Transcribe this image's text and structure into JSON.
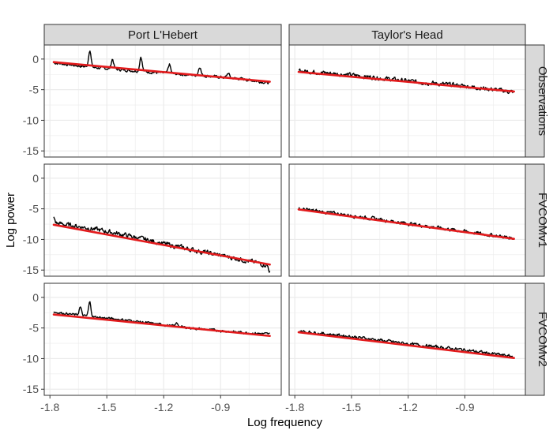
{
  "chart_data": {
    "type": "line",
    "xlabel": "Log frequency",
    "ylabel": "Log power",
    "xlim": [
      -1.83,
      -0.58
    ],
    "ylim": [
      -16,
      2.3
    ],
    "x_ticks": [
      -1.8,
      -1.5,
      -1.2,
      -0.9
    ],
    "x_tick_labels": [
      "-1.8",
      "-1.5",
      "-1.2",
      "-0.9"
    ],
    "y_ticks": [
      0,
      -5,
      -10,
      -15
    ],
    "y_tick_labels": [
      "0",
      "-5",
      "-10",
      "-15"
    ],
    "columns": [
      "Port L'Hebert",
      "Taylor's Head"
    ],
    "rows": [
      "Observations",
      "FVCOMv1",
      "FVCOMv2"
    ],
    "grid": true,
    "colors": {
      "spectrum": "#000000",
      "fit": "#e31a1c",
      "strip_bg": "#d9d9d9",
      "grid": "#ebebeb",
      "panel_border": "#333333"
    },
    "x_range": [
      -1.78,
      -0.64
    ],
    "panels": [
      {
        "column": "Port L'Hebert",
        "row": "Observations",
        "fit": {
          "x": [
            -1.78,
            -0.64
          ],
          "y": [
            -0.5,
            -3.7
          ]
        },
        "baseline": {
          "x": [
            -1.78,
            -1.6,
            -1.4,
            -1.2,
            -1.0,
            -0.8,
            -0.64
          ],
          "y": [
            -0.6,
            -1.3,
            -1.8,
            -2.3,
            -2.7,
            -3.2,
            -3.9
          ]
        },
        "peaks": [
          {
            "x": -1.59,
            "y": 1.5
          },
          {
            "x": -1.47,
            "y": 0.0
          },
          {
            "x": -1.32,
            "y": 0.4
          },
          {
            "x": -1.17,
            "y": -0.9
          },
          {
            "x": -1.01,
            "y": -1.2
          },
          {
            "x": -0.86,
            "y": -2.3
          }
        ],
        "noise": 0.35
      },
      {
        "column": "Taylor's Head",
        "row": "Observations",
        "fit": {
          "x": [
            -1.78,
            -0.64
          ],
          "y": [
            -2.1,
            -5.3
          ]
        },
        "baseline": {
          "x": [
            -1.78,
            -1.5,
            -1.2,
            -0.9,
            -0.64
          ],
          "y": [
            -1.9,
            -2.6,
            -3.6,
            -4.4,
            -5.4
          ]
        },
        "peaks": [],
        "noise": 0.55
      },
      {
        "column": "Port L'Hebert",
        "row": "FVCOMv1",
        "fit": {
          "x": [
            -1.78,
            -0.64
          ],
          "y": [
            -7.6,
            -14.1
          ]
        },
        "baseline": {
          "x": [
            -1.78,
            -1.6,
            -1.4,
            -1.2,
            -1.0,
            -0.8,
            -0.64
          ],
          "y": [
            -7.3,
            -8.1,
            -9.3,
            -10.7,
            -12.0,
            -13.2,
            -14.3
          ]
        },
        "peaks": [
          {
            "x": -1.78,
            "y": -6.5
          },
          {
            "x": -0.64,
            "y": -15.2
          }
        ],
        "noise": 0.6
      },
      {
        "column": "Taylor's Head",
        "row": "FVCOMv1",
        "fit": {
          "x": [
            -1.78,
            -0.64
          ],
          "y": [
            -5.1,
            -9.9
          ]
        },
        "baseline": {
          "x": [
            -1.78,
            -1.5,
            -1.2,
            -0.9,
            -0.64
          ],
          "y": [
            -5.0,
            -6.1,
            -7.4,
            -8.7,
            -9.8
          ]
        },
        "peaks": [],
        "noise": 0.45
      },
      {
        "column": "Port L'Hebert",
        "row": "FVCOMv2",
        "fit": {
          "x": [
            -1.78,
            -0.64
          ],
          "y": [
            -2.8,
            -6.3
          ]
        },
        "baseline": {
          "x": [
            -1.78,
            -1.6,
            -1.4,
            -1.2,
            -1.0,
            -0.8,
            -0.64
          ],
          "y": [
            -2.4,
            -3.1,
            -3.7,
            -4.5,
            -5.2,
            -5.7,
            -6.0
          ]
        },
        "peaks": [
          {
            "x": -1.59,
            "y": -0.8
          },
          {
            "x": -1.64,
            "y": -1.6
          },
          {
            "x": -1.13,
            "y": -4.2
          }
        ],
        "noise": 0.3
      },
      {
        "column": "Taylor's Head",
        "row": "FVCOMv2",
        "fit": {
          "x": [
            -1.78,
            -0.64
          ],
          "y": [
            -5.7,
            -9.9
          ]
        },
        "baseline": {
          "x": [
            -1.78,
            -1.5,
            -1.2,
            -0.9,
            -0.64
          ],
          "y": [
            -5.5,
            -6.4,
            -7.6,
            -8.6,
            -9.7
          ]
        },
        "peaks": [],
        "noise": 0.4
      }
    ]
  }
}
